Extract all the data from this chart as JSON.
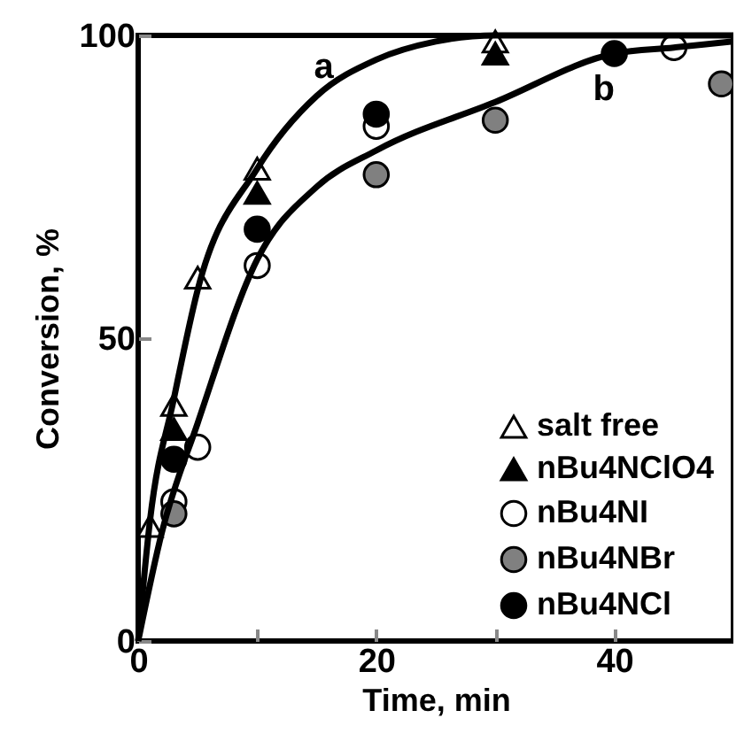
{
  "chart_data": {
    "type": "scatter",
    "xlabel": "Time, min",
    "ylabel": "Conversion, %",
    "xlim": [
      0,
      50
    ],
    "ylim": [
      0,
      100
    ],
    "xticks": [
      0,
      {
        "value": 10,
        "label": null
      },
      20,
      {
        "value": 30,
        "label": null
      },
      40
    ],
    "yticks": [
      0,
      50,
      100
    ],
    "grid": false,
    "legend": "bottom right",
    "series": [
      {
        "name": "salt free",
        "type": "scatter",
        "marker": "triangle",
        "color": "#ffffff",
        "x": [
          1,
          3,
          5,
          10,
          30
        ],
        "values": [
          19,
          39,
          60,
          78,
          99
        ]
      },
      {
        "name": "nBu4NClO4",
        "type": "scatter",
        "marker": "triangle",
        "color": "#000000",
        "x": [
          3,
          10,
          30
        ],
        "values": [
          35,
          74,
          97
        ]
      },
      {
        "name": "nBu4NI",
        "type": "scatter",
        "marker": "circle",
        "color": "#ffffff",
        "x": [
          3,
          5,
          10,
          20,
          45
        ],
        "values": [
          23,
          32,
          62,
          85,
          98
        ]
      },
      {
        "name": "nBu4NBr",
        "type": "scatter",
        "marker": "circle",
        "color": "#808080",
        "x": [
          3,
          20,
          30,
          49
        ],
        "values": [
          21,
          77,
          86,
          92
        ]
      },
      {
        "name": "nBu4NCl",
        "type": "scatter",
        "marker": "circle",
        "color": "#000000",
        "x": [
          3,
          10,
          20,
          40
        ],
        "values": [
          30,
          68,
          87,
          97
        ]
      },
      {
        "name": "a",
        "type": "line",
        "marker": "none",
        "color": "#000000",
        "x": [
          0,
          1,
          3,
          5,
          10,
          15,
          20,
          25,
          30,
          50
        ],
        "values": [
          0,
          20,
          40,
          58,
          78,
          90,
          96,
          99,
          100,
          100
        ]
      },
      {
        "name": "b",
        "type": "line",
        "marker": "none",
        "color": "#000000",
        "x": [
          0,
          2,
          5,
          10,
          15,
          20,
          30,
          40,
          45,
          50
        ],
        "values": [
          0,
          18,
          36,
          63,
          75,
          81,
          89,
          97,
          98,
          99
        ]
      }
    ]
  }
}
